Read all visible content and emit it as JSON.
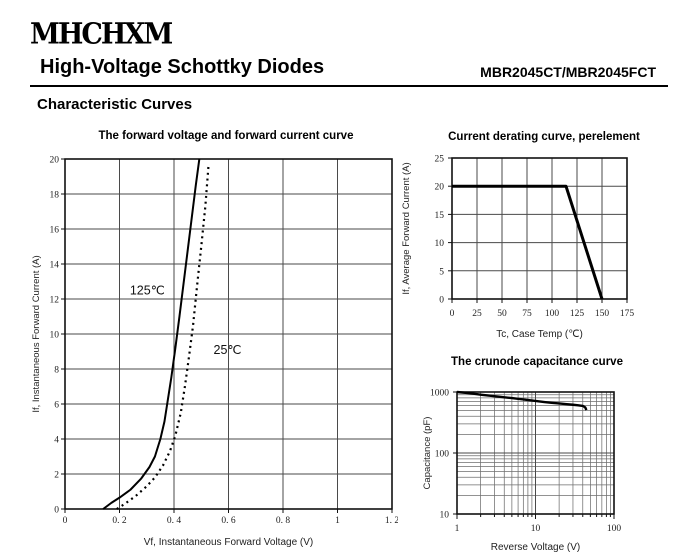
{
  "header": {
    "logo": "MHCHXM",
    "title": "High-Voltage Schottky Diodes",
    "part_number": "MBR2045CT/MBR2045FCT",
    "section": "Characteristic Curves"
  },
  "colors": {
    "ink": "#000000",
    "grid_major": "#4a4a4a",
    "grid_minor": "#6e6e6e",
    "frame": "#111111"
  },
  "chart_data": [
    {
      "type": "line",
      "title": "The forward voltage and forward current curve",
      "xlabel": "Vf, Instantaneous Forward Voltage (V)",
      "ylabel": "If, Instantaneous Forward Current (A)",
      "xscale": "linear",
      "yscale": "linear",
      "xlim": [
        0,
        1.2
      ],
      "ylim": [
        0,
        20
      ],
      "grid": true,
      "legend": "inline-annotations",
      "xticks": [
        0,
        0.2,
        0.4,
        0.6,
        0.8,
        1,
        1.2
      ],
      "xtick_labels": [
        "0",
        "0. 2",
        "0. 4",
        "0. 6",
        "0. 8",
        "1",
        "1. 2"
      ],
      "yticks": [
        0,
        2,
        4,
        6,
        8,
        10,
        12,
        14,
        16,
        18,
        20
      ],
      "ytick_labels": [
        "0",
        "2",
        "4",
        "6",
        "8",
        "10",
        "12",
        "14",
        "16",
        "18",
        "20"
      ],
      "series": [
        {
          "name": "125℃",
          "style": "solid",
          "width": 2,
          "points": [
            [
              0.14,
              0
            ],
            [
              0.17,
              0.35
            ],
            [
              0.2,
              0.65
            ],
            [
              0.24,
              1.1
            ],
            [
              0.28,
              1.75
            ],
            [
              0.31,
              2.4
            ],
            [
              0.33,
              3.0
            ],
            [
              0.35,
              4.0
            ],
            [
              0.365,
              5.0
            ],
            [
              0.375,
              6.0
            ],
            [
              0.39,
              7.5
            ],
            [
              0.405,
              9.2
            ],
            [
              0.42,
              11.0
            ],
            [
              0.44,
              13.5
            ],
            [
              0.46,
              16.0
            ],
            [
              0.48,
              18.5
            ],
            [
              0.493,
              20.0
            ]
          ]
        },
        {
          "name": "25℃",
          "style": "dotted",
          "width": 2.2,
          "points": [
            [
              0.19,
              0
            ],
            [
              0.22,
              0.3
            ],
            [
              0.26,
              0.75
            ],
            [
              0.3,
              1.3
            ],
            [
              0.33,
              1.8
            ],
            [
              0.36,
              2.5
            ],
            [
              0.385,
              3.3
            ],
            [
              0.405,
              4.2
            ],
            [
              0.425,
              5.5
            ],
            [
              0.44,
              7.0
            ],
            [
              0.455,
              8.7
            ],
            [
              0.47,
              10.5
            ],
            [
              0.485,
              12.8
            ],
            [
              0.5,
              15.0
            ],
            [
              0.515,
              17.3
            ],
            [
              0.527,
              19.7
            ]
          ]
        }
      ],
      "annotations": [
        {
          "text": "125℃",
          "x": 0.238,
          "y": 12.5,
          "anchor": "start"
        },
        {
          "text": "25℃",
          "x": 0.545,
          "y": 9.1,
          "anchor": "start"
        }
      ]
    },
    {
      "type": "line",
      "title": "Current derating curve, perelement",
      "xlabel": "Tc, Case Temp (℃)",
      "ylabel": "If, Average Forward Current (A)",
      "xscale": "linear",
      "yscale": "linear",
      "xlim": [
        0,
        175
      ],
      "ylim": [
        0,
        25
      ],
      "grid": true,
      "legend": "none",
      "xticks": [
        0,
        25,
        50,
        75,
        100,
        125,
        150,
        175
      ],
      "xtick_labels": [
        "0",
        "25",
        "50",
        "75",
        "100",
        "125",
        "150",
        "175"
      ],
      "yticks": [
        0,
        5,
        10,
        15,
        20,
        25
      ],
      "ytick_labels": [
        "0",
        "5",
        "10",
        "15",
        "20",
        "25"
      ],
      "series": [
        {
          "name": "derating",
          "style": "solid",
          "width": 3,
          "points": [
            [
              0,
              20
            ],
            [
              114,
              20
            ],
            [
              150,
              0
            ]
          ]
        }
      ],
      "annotations": []
    },
    {
      "type": "line",
      "title": "The crunode capacitance curve",
      "xlabel": "Reverse Voltage (V)",
      "ylabel": "Capacitance (pF)",
      "xscale": "log",
      "yscale": "log",
      "xlim": [
        1,
        100
      ],
      "ylim": [
        10,
        1000
      ],
      "grid": true,
      "legend": "none",
      "xticks": [
        1,
        10,
        100
      ],
      "xtick_labels": [
        "1",
        "10",
        "100"
      ],
      "yticks": [
        10,
        100,
        1000
      ],
      "ytick_labels": [
        "10",
        "100",
        "1000"
      ],
      "series": [
        {
          "name": "capacitance",
          "style": "solid",
          "width": 2.4,
          "points": [
            [
              1,
              1000
            ],
            [
              1.5,
              950
            ],
            [
              2,
              905
            ],
            [
              3,
              855
            ],
            [
              4,
              820
            ],
            [
              5,
              795
            ],
            [
              7,
              755
            ],
            [
              10,
              715
            ],
            [
              13,
              685
            ],
            [
              16,
              665
            ],
            [
              20,
              648
            ],
            [
              25,
              632
            ],
            [
              30,
              618
            ],
            [
              35,
              606
            ],
            [
              40,
              592
            ],
            [
              43,
              560
            ],
            [
              44.5,
              505
            ]
          ]
        }
      ],
      "annotations": []
    }
  ]
}
